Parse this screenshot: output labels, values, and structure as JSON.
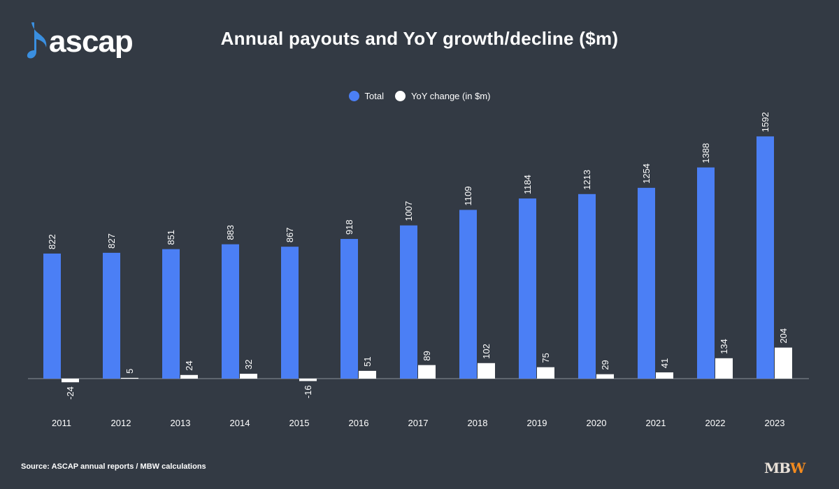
{
  "brand": {
    "logo_text": "ascap",
    "logo_color": "#3a8fe0"
  },
  "title": "Annual payouts and YoY growth/decline ($m)",
  "source": "Source: ASCAP annual reports / MBW calculations",
  "footer_logo": {
    "m": "M",
    "b": "B",
    "w": "W"
  },
  "colors": {
    "background": "#333a44",
    "total": "#4b7ff5",
    "yoy": "#ffffff",
    "axis": "#8a9099"
  },
  "chart_data": {
    "type": "bar",
    "title": "Annual payouts and YoY growth/decline ($m)",
    "xlabel": "",
    "ylabel": "",
    "legend_position": "top-center",
    "grid": false,
    "categories": [
      "2011",
      "2012",
      "2013",
      "2014",
      "2015",
      "2016",
      "2017",
      "2018",
      "2019",
      "2020",
      "2021",
      "2022",
      "2023"
    ],
    "series": [
      {
        "name": "Total",
        "color": "#4b7ff5",
        "values": [
          822,
          827,
          851,
          883,
          867,
          918,
          1007,
          1109,
          1184,
          1213,
          1254,
          1388,
          1592
        ]
      },
      {
        "name": "YoY change (in $m)",
        "color": "#ffffff",
        "values": [
          -24,
          5,
          24,
          32,
          -16,
          51,
          89,
          102,
          75,
          29,
          41,
          134,
          204
        ]
      }
    ]
  }
}
